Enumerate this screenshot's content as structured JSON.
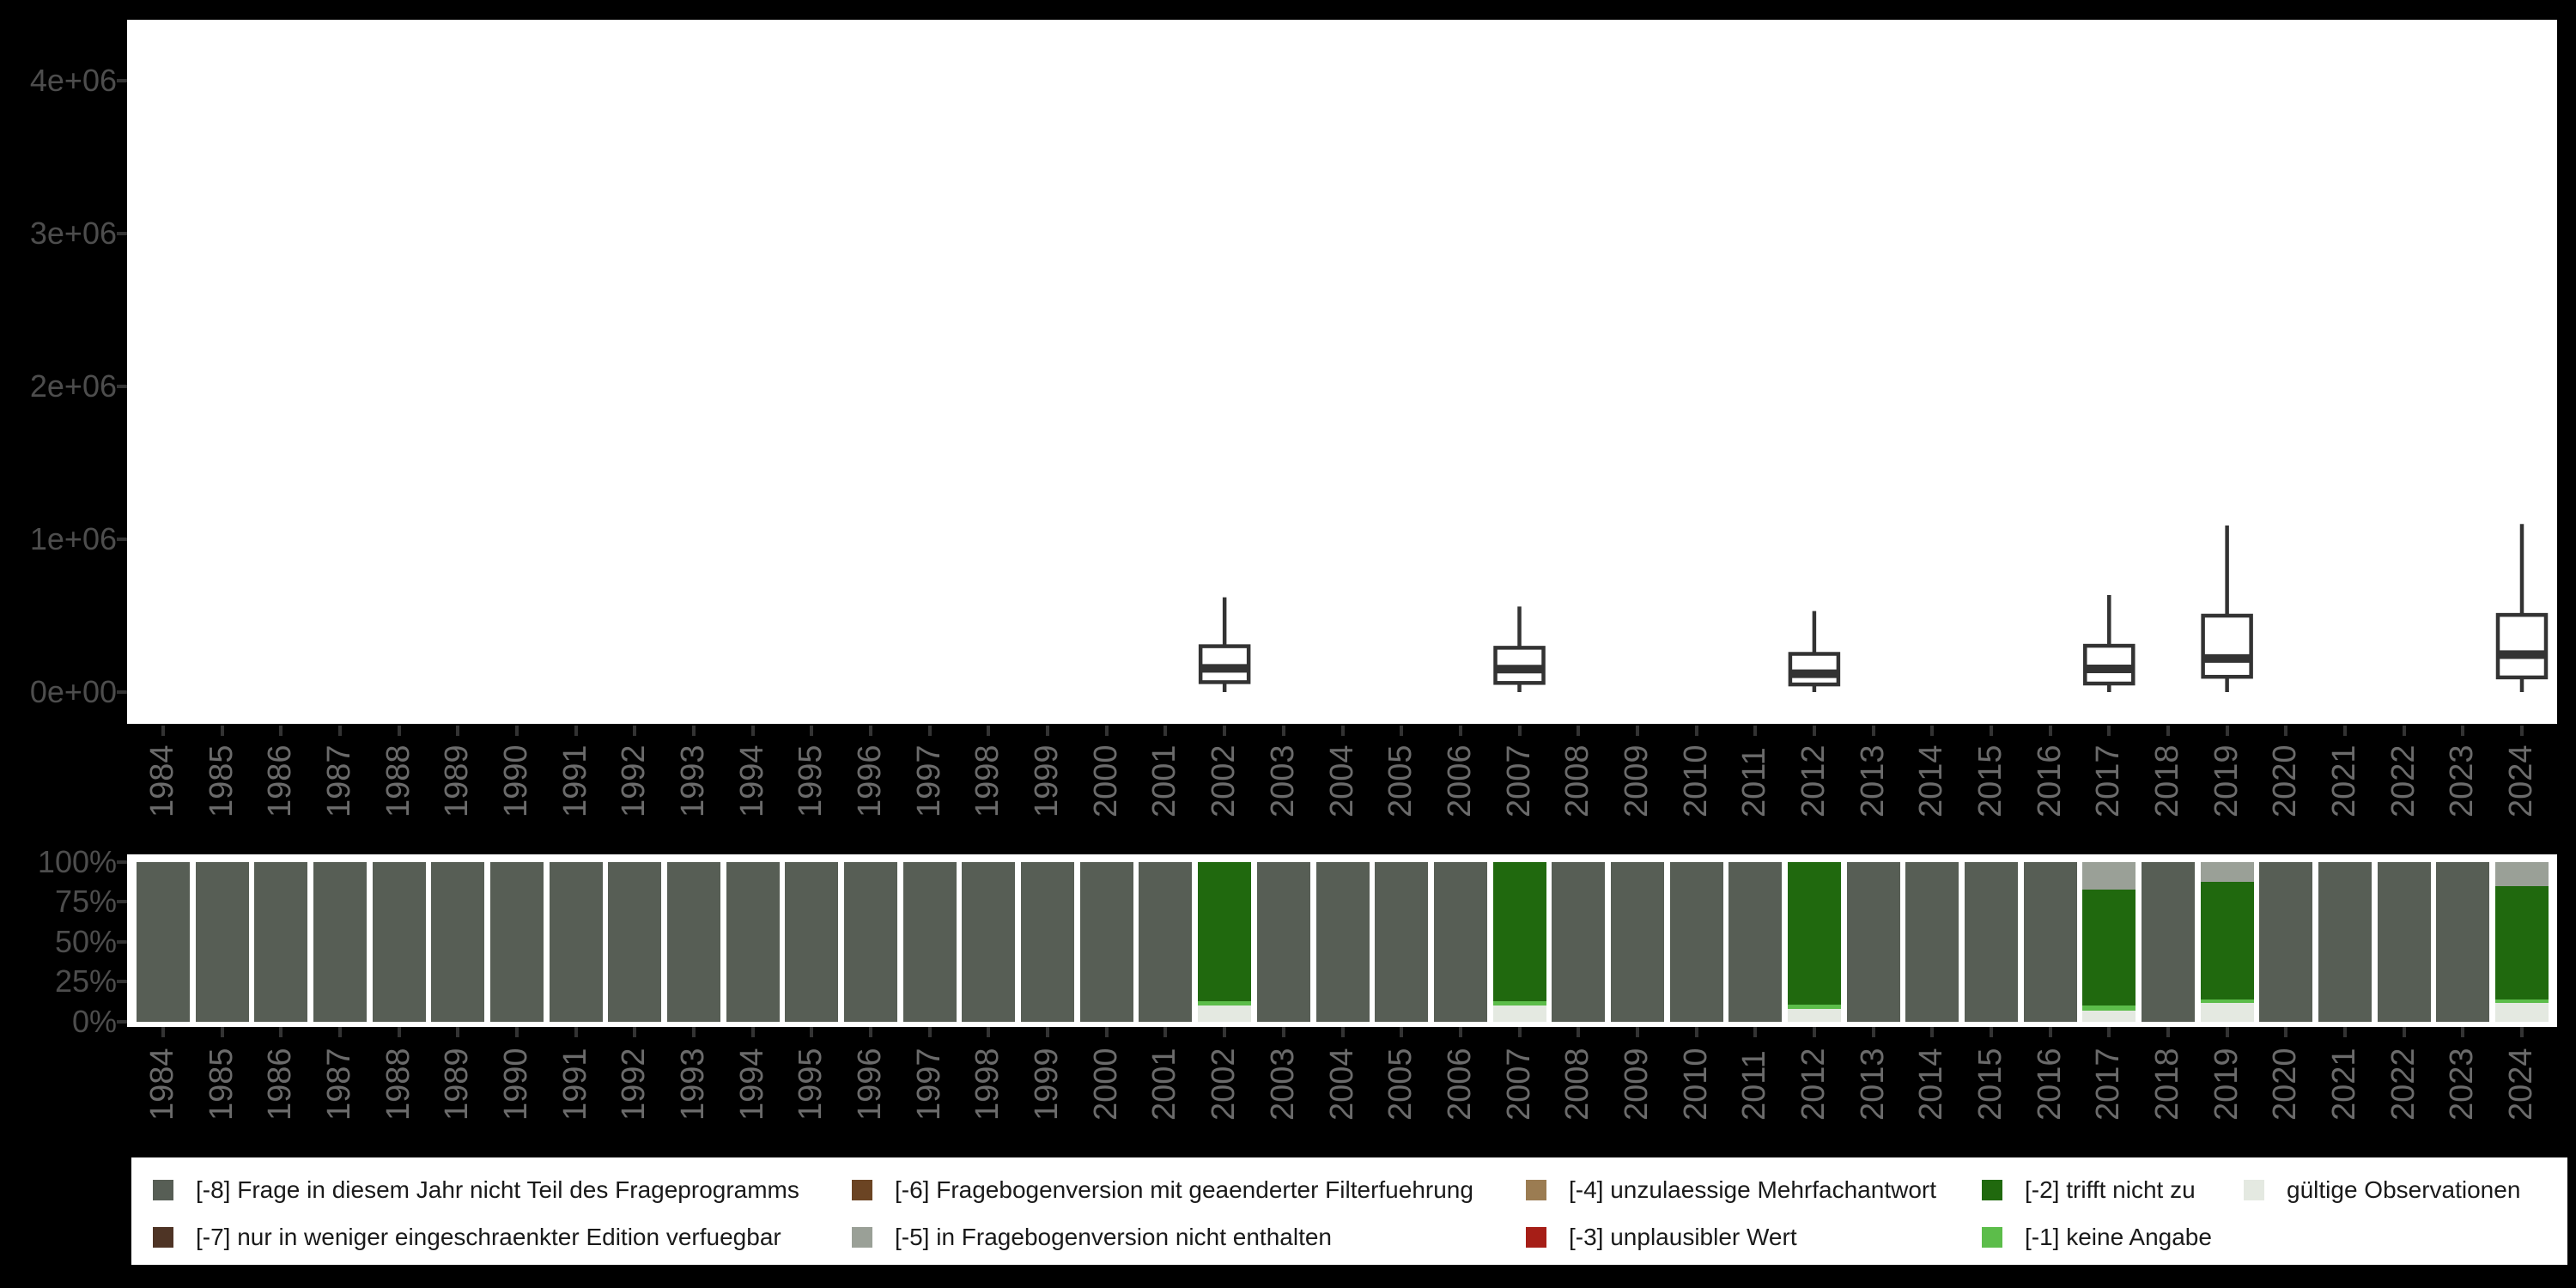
{
  "figure": {
    "background": "#000000",
    "panel_background": "#ffffff",
    "axis_text_color": "#4d4d4d",
    "year_text_color": "#6b6b6b",
    "tick_color": "#333333",
    "box_stroke_color": "#333333"
  },
  "colors": {
    "-8": "#575E55",
    "-7": "#4E3425",
    "-6": "#6B4423",
    "-5": "#9AA097",
    "-4": "#9B7C52",
    "-3": "#A61E17",
    "-2": "#20690E",
    "-1": "#5CBD4A",
    "valid": "#E4E9E1"
  },
  "legend": {
    "items": [
      {
        "key": "-8",
        "label": "[-8] Frage in diesem Jahr nicht Teil des Frageprogramms"
      },
      {
        "key": "-7",
        "label": "[-7] nur in weniger eingeschraenkter Edition verfuegbar"
      },
      {
        "key": "-6",
        "label": "[-6] Fragebogenversion mit geaenderter Filterfuehrung"
      },
      {
        "key": "-5",
        "label": "[-5] in Fragebogenversion nicht enthalten"
      },
      {
        "key": "-4",
        "label": "[-4] unzulaessige Mehrfachantwort"
      },
      {
        "key": "-3",
        "label": "[-3] unplausibler Wert"
      },
      {
        "key": "-2",
        "label": "[-2] trifft nicht zu"
      },
      {
        "key": "-1",
        "label": "[-1] keine Angabe"
      },
      {
        "key": "valid",
        "label": "gültige Observationen"
      }
    ]
  },
  "chart_data": [
    {
      "type": "boxplot",
      "title": "",
      "xlabel": "",
      "ylabel": "",
      "categories": [
        1984,
        1985,
        1986,
        1987,
        1988,
        1989,
        1990,
        1991,
        1992,
        1993,
        1994,
        1995,
        1996,
        1997,
        1998,
        1999,
        2000,
        2001,
        2002,
        2003,
        2004,
        2005,
        2006,
        2007,
        2008,
        2009,
        2010,
        2011,
        2012,
        2013,
        2014,
        2015,
        2016,
        2017,
        2018,
        2019,
        2020,
        2021,
        2022,
        2023,
        2024
      ],
      "y_ticks": [
        {
          "label": "0e+00",
          "value": 0
        },
        {
          "label": "1e+06",
          "value": 1000000
        },
        {
          "label": "2e+06",
          "value": 2000000
        },
        {
          "label": "3e+06",
          "value": 3000000
        },
        {
          "label": "4e+06",
          "value": 4000000
        }
      ],
      "ylim": [
        -220000,
        4420000
      ],
      "grid": false,
      "boxes": [
        {
          "year": 2002,
          "min": 0,
          "q1": 65000,
          "median": 155000,
          "q3": 300000,
          "max": 620000
        },
        {
          "year": 2007,
          "min": 0,
          "q1": 60000,
          "median": 150000,
          "q3": 290000,
          "max": 560000
        },
        {
          "year": 2012,
          "min": 0,
          "q1": 50000,
          "median": 120000,
          "q3": 250000,
          "max": 530000
        },
        {
          "year": 2017,
          "min": 0,
          "q1": 56000,
          "median": 152000,
          "q3": 303000,
          "max": 635000
        },
        {
          "year": 2019,
          "min": 0,
          "q1": 100000,
          "median": 220000,
          "q3": 500000,
          "max": 1090000
        },
        {
          "year": 2024,
          "min": 0,
          "q1": 96000,
          "median": 245000,
          "q3": 505000,
          "max": 1100000
        }
      ]
    },
    {
      "type": "bar",
      "subtype": "stacked_percent",
      "title": "",
      "xlabel": "",
      "ylabel": "",
      "categories": [
        1984,
        1985,
        1986,
        1987,
        1988,
        1989,
        1990,
        1991,
        1992,
        1993,
        1994,
        1995,
        1996,
        1997,
        1998,
        1999,
        2000,
        2001,
        2002,
        2003,
        2004,
        2005,
        2006,
        2007,
        2008,
        2009,
        2010,
        2011,
        2012,
        2013,
        2014,
        2015,
        2016,
        2017,
        2018,
        2019,
        2020,
        2021,
        2022,
        2023,
        2024
      ],
      "y_ticks": [
        "0%",
        "25%",
        "50%",
        "75%",
        "100%"
      ],
      "ylim": [
        0,
        100
      ],
      "grid": false,
      "default_segments_bottom_to_top": [
        {
          "key": "-8",
          "pct": 100
        }
      ],
      "year_overrides_bottom_to_top": {
        "2002": [
          {
            "key": "valid",
            "pct": 10
          },
          {
            "key": "-1",
            "pct": 3
          },
          {
            "key": "-2",
            "pct": 87
          }
        ],
        "2007": [
          {
            "key": "valid",
            "pct": 10
          },
          {
            "key": "-1",
            "pct": 3
          },
          {
            "key": "-2",
            "pct": 87
          }
        ],
        "2012": [
          {
            "key": "valid",
            "pct": 8
          },
          {
            "key": "-1",
            "pct": 2.5
          },
          {
            "key": "-2",
            "pct": 89.5
          }
        ],
        "2017": [
          {
            "key": "valid",
            "pct": 7
          },
          {
            "key": "-1",
            "pct": 3
          },
          {
            "key": "-2",
            "pct": 73
          },
          {
            "key": "-5",
            "pct": 17
          }
        ],
        "2019": [
          {
            "key": "valid",
            "pct": 12
          },
          {
            "key": "-1",
            "pct": 2
          },
          {
            "key": "-2",
            "pct": 73.5
          },
          {
            "key": "-5",
            "pct": 12.5
          }
        ],
        "2024": [
          {
            "key": "valid",
            "pct": 12
          },
          {
            "key": "-1",
            "pct": 2
          },
          {
            "key": "-2",
            "pct": 71
          },
          {
            "key": "-5",
            "pct": 15
          }
        ]
      }
    }
  ]
}
